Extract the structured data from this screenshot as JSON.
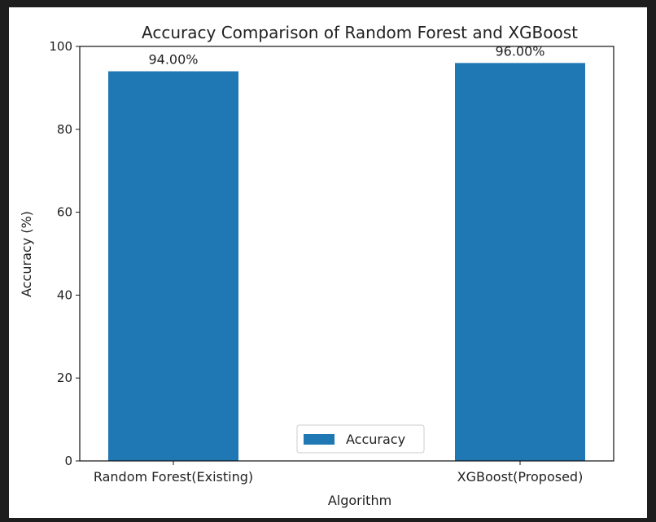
{
  "chart_data": {
    "type": "bar",
    "title": "Accuracy Comparison of Random Forest and XGBoost",
    "xlabel": "Algorithm",
    "ylabel": "Accuracy (%)",
    "categories": [
      "Random Forest(Existing)",
      "XGBoost(Proposed)"
    ],
    "series": [
      {
        "name": "Accuracy",
        "values": [
          94.0,
          96.0
        ],
        "color": "#1f77b4"
      }
    ],
    "data_labels": [
      "94.00%",
      "96.00%"
    ],
    "ylim": [
      0,
      100
    ],
    "yticks": [
      0,
      20,
      40,
      60,
      80,
      100
    ],
    "grid": false,
    "legend": {
      "placement": "lower-center",
      "entries": [
        "Accuracy"
      ]
    }
  },
  "colors": {
    "bar": "#1f77b4",
    "background": "#ffffff",
    "frame": "#1e1e1e",
    "text": "#222222"
  }
}
